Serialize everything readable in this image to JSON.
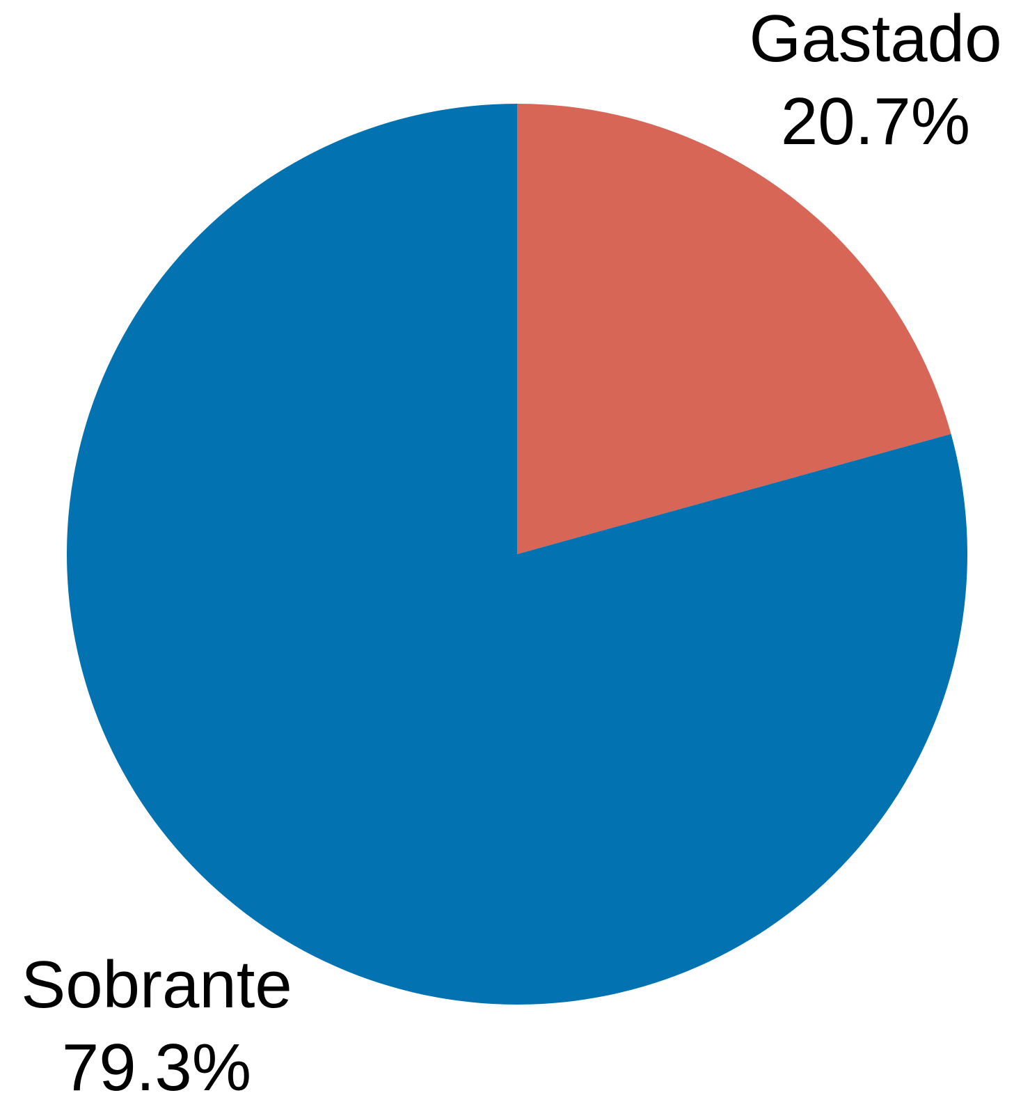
{
  "chart_data": {
    "type": "pie",
    "title": "",
    "start": "top",
    "direction": "clockwise",
    "slices": [
      {
        "label": "Gastado",
        "value": 20.7,
        "value_label": "20.7%",
        "color": "#d76657"
      },
      {
        "label": "Sobrante",
        "value": 79.3,
        "value_label": "79.3%",
        "color": "#0273b0"
      }
    ]
  }
}
